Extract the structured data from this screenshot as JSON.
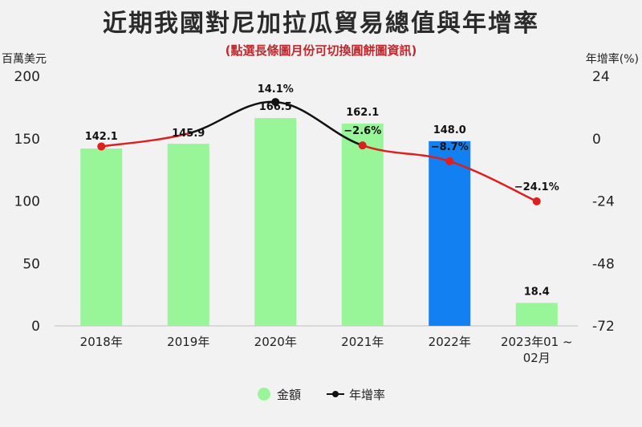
{
  "title": "近期我國對尼加拉瓜貿易總值與年增率",
  "subtitle": "(點選長條圖月份可切換圓餅圖資訊)",
  "colors": {
    "bar": "#98f598",
    "bar_selected": "#1280f0",
    "growth_line_high": "#111111",
    "growth_line_low": "#dd1f1f"
  },
  "chart_data": {
    "type": "bar",
    "title": "近期我國對尼加拉瓜貿易總值與年增率",
    "subtitle": "(點選長條圖月份可切換圓餅圖資訊)",
    "y_left_label": "百萬美元",
    "y_right_label": "年增率(%)",
    "ylim_left": [
      0,
      200
    ],
    "ylim_right": [
      -72,
      24
    ],
    "y_left_ticks": [
      "0",
      "50",
      "100",
      "150",
      "200"
    ],
    "y_right_ticks": [
      "-72",
      "-48",
      "-24",
      "0",
      "24"
    ],
    "categories": [
      "2018年",
      "2019年",
      "2020年",
      "2021年",
      "2022年",
      "2023年01 ~ 02月"
    ],
    "category_lines": [
      [
        "2018年"
      ],
      [
        "2019年"
      ],
      [
        "2020年"
      ],
      [
        "2021年"
      ],
      [
        "2022年"
      ],
      [
        "2023年01 ~",
        "02月"
      ]
    ],
    "selected_index": 4,
    "series": [
      {
        "name": "金額",
        "type": "bar",
        "values": [
          142.1,
          145.9,
          166.5,
          162.1,
          148.0,
          18.4
        ],
        "labels": [
          "142.1",
          "145.9",
          "166.5",
          "162.1",
          "148.0",
          "18.4"
        ]
      },
      {
        "name": "年增率",
        "type": "line",
        "values": [
          null,
          null,
          14.1,
          -2.6,
          -8.7,
          -24.1
        ],
        "labels": [
          "",
          "",
          "14.1%",
          "−2.6%",
          "−8.7%",
          "−24.1%"
        ],
        "extra_points": [
          -3.0,
          2.0
        ]
      }
    ],
    "legend": {
      "position": "bottom-center"
    },
    "grid": false
  }
}
